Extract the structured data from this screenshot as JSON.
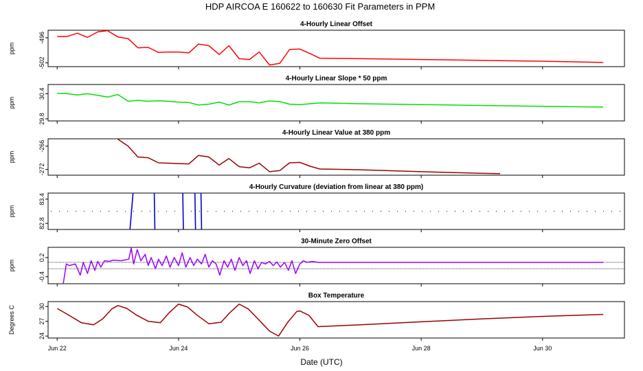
{
  "title": "HDP   AIRCOA E   160622 to 160630   Fit Parameters in PPM",
  "x_axis": {
    "label": "Date (UTC)",
    "range": [
      21.85,
      31.35
    ],
    "ticks": [
      {
        "value": 22,
        "label": "Jun 22"
      },
      {
        "value": 24,
        "label": "Jun 24"
      },
      {
        "value": 26,
        "label": "Jun 26"
      },
      {
        "value": 28,
        "label": "Jun 28"
      },
      {
        "value": 30,
        "label": "Jun 30"
      }
    ]
  },
  "colors": {
    "red": "#ff0000",
    "green": "#00e000",
    "darkred": "#990000",
    "blue": "#0000cc",
    "purple": "#9900ff"
  },
  "chart_data": [
    {
      "type": "line",
      "title": "4-Hourly Linear Offset",
      "ylabel": "ppm",
      "ylim": [
        -502.9,
        -494.2
      ],
      "yticks": [
        {
          "value": -496,
          "label": "-496"
        },
        {
          "value": -502,
          "label": "-502"
        }
      ],
      "color": "#ff0000",
      "x": [
        22.0,
        22.17,
        22.33,
        22.5,
        22.67,
        22.83,
        23.0,
        23.17,
        23.33,
        23.5,
        23.67,
        23.83,
        24.0,
        24.17,
        24.33,
        24.5,
        24.67,
        24.83,
        25.0,
        25.17,
        25.33,
        25.5,
        25.67,
        25.83,
        26.0,
        26.17,
        26.33,
        27.0,
        28.0,
        29.0,
        30.0,
        31.0
      ],
      "values": [
        -495.7,
        -495.7,
        -494.9,
        -495.9,
        -494.6,
        -494.3,
        -495.8,
        -496.2,
        -498.4,
        -498.3,
        -499.5,
        -499.4,
        -499.4,
        -499.6,
        -497.5,
        -497.9,
        -500.0,
        -497.9,
        -501.0,
        -501.2,
        -499.4,
        -502.5,
        -502.1,
        -498.8,
        -498.7,
        -499.8,
        -500.9,
        -501.0,
        -501.2,
        -501.4,
        -501.6,
        -501.9
      ]
    },
    {
      "type": "line",
      "title": "4-Hourly Linear Slope * 50 ppm",
      "ylabel": "ppm",
      "ylim": [
        29.75,
        30.62
      ],
      "yticks": [
        {
          "value": 30.4,
          "label": "30.4"
        },
        {
          "value": 29.8,
          "label": "29.8"
        }
      ],
      "color": "#00e000",
      "x": [
        22.0,
        22.17,
        22.33,
        22.5,
        22.67,
        22.83,
        23.0,
        23.17,
        23.33,
        23.5,
        23.67,
        23.83,
        24.0,
        24.17,
        24.33,
        24.5,
        24.67,
        24.83,
        25.0,
        25.17,
        25.33,
        25.5,
        25.67,
        25.83,
        26.0,
        26.17,
        26.33,
        27.0,
        28.0,
        29.0,
        30.0,
        31.0
      ],
      "values": [
        30.41,
        30.4,
        30.37,
        30.4,
        30.36,
        30.32,
        30.38,
        30.22,
        30.24,
        30.22,
        30.23,
        30.22,
        30.2,
        30.19,
        30.13,
        30.15,
        30.2,
        30.13,
        30.21,
        30.21,
        30.18,
        30.23,
        30.21,
        30.15,
        30.14,
        30.16,
        30.18,
        30.16,
        30.14,
        30.12,
        30.1,
        30.08
      ]
    },
    {
      "type": "line",
      "title": "4-Hourly Linear Value at 380 ppm",
      "ylabel": "ppm",
      "ylim": [
        -273.5,
        -264.1
      ],
      "yticks": [
        {
          "value": -266,
          "label": "-266"
        },
        {
          "value": -272,
          "label": "-272"
        }
      ],
      "color": "#990000",
      "x": [
        23.0,
        23.17,
        23.33,
        23.5,
        23.67,
        23.83,
        24.0,
        24.17,
        24.33,
        24.5,
        24.67,
        24.83,
        25.0,
        25.17,
        25.33,
        25.5,
        25.67,
        25.83,
        26.0,
        26.17,
        26.33,
        27.0,
        28.0,
        29.0,
        29.3
      ],
      "values": [
        -264.2,
        -266.0,
        -268.8,
        -269.0,
        -270.3,
        -270.4,
        -270.5,
        -270.6,
        -268.4,
        -268.8,
        -270.9,
        -269.2,
        -271.3,
        -271.6,
        -270.4,
        -272.6,
        -272.3,
        -270.3,
        -270.2,
        -271.2,
        -271.9,
        -272.1,
        -272.6,
        -273.0,
        -273.1
      ]
    },
    {
      "type": "line",
      "title": "4-Hourly Curvature (deviation from linear at 380 ppm)",
      "ylabel": "ppm",
      "ylim": [
        82.65,
        83.55
      ],
      "yticks": [
        {
          "value": 83.4,
          "label": "83.4"
        },
        {
          "value": 82.8,
          "label": "82.8"
        }
      ],
      "color": "#0000cc",
      "reference_level": 83.1,
      "x": [
        23.2,
        23.25,
        23.6,
        23.61,
        24.07,
        24.08,
        24.27,
        24.28,
        24.37,
        24.38
      ],
      "values": [
        82.65,
        83.55,
        83.55,
        82.65,
        83.55,
        82.65,
        83.55,
        82.65,
        83.55,
        82.65
      ]
    },
    {
      "type": "line",
      "title": "30-Minute Zero Offset",
      "ylabel": "ppm",
      "ylim": [
        -0.62,
        0.52
      ],
      "yticks": [
        {
          "value": 0.2,
          "label": "0.2"
        },
        {
          "value": -0.4,
          "label": "-0.4"
        }
      ],
      "color": "#9900ff",
      "reference_levels": [
        0.05,
        -0.15
      ],
      "x": [
        22.1,
        22.15,
        22.2,
        22.3,
        22.38,
        22.43,
        22.5,
        22.56,
        22.62,
        22.67,
        22.72,
        22.78,
        22.85,
        22.93,
        23.05,
        23.18,
        23.22,
        23.26,
        23.32,
        23.38,
        23.45,
        23.5,
        23.55,
        23.62,
        23.67,
        23.73,
        23.8,
        23.86,
        23.93,
        24.0,
        24.06,
        24.12,
        24.19,
        24.25,
        24.31,
        24.38,
        24.44,
        24.5,
        24.56,
        24.62,
        24.68,
        24.75,
        24.81,
        24.87,
        24.93,
        25.0,
        25.06,
        25.12,
        25.18,
        25.25,
        25.31,
        25.37,
        25.43,
        25.5,
        25.56,
        25.62,
        25.68,
        25.75,
        25.81,
        25.87,
        25.93,
        26.0,
        26.06,
        26.12,
        26.2,
        26.3,
        27.0,
        28.0,
        29.0,
        30.0,
        31.0
      ],
      "values": [
        -0.62,
        0.0,
        -0.05,
        0.0,
        -0.35,
        0.05,
        -0.3,
        0.1,
        -0.2,
        0.08,
        -0.1,
        0.1,
        0.08,
        0.12,
        0.1,
        0.15,
        0.5,
        0.0,
        0.45,
        0.1,
        0.3,
        -0.05,
        0.2,
        -0.15,
        0.15,
        -0.05,
        0.25,
        -0.1,
        0.2,
        -0.05,
        0.35,
        -0.1,
        0.2,
        -0.05,
        0.15,
        0.0,
        0.3,
        -0.1,
        0.1,
        0.0,
        -0.35,
        0.1,
        -0.1,
        0.15,
        -0.2,
        0.2,
        -0.05,
        0.1,
        -0.3,
        0.1,
        -0.15,
        0.05,
        0.0,
        0.08,
        -0.05,
        0.06,
        -0.1,
        0.05,
        -0.2,
        0.1,
        -0.3,
        0.0,
        0.1,
        0.05,
        0.08,
        0.05,
        0.05,
        0.05,
        0.05,
        0.05,
        0.05
      ]
    },
    {
      "type": "line",
      "title": "Box Temperature",
      "ylabel": "Degrees C",
      "ylim": [
        23.6,
        31.0
      ],
      "yticks": [
        {
          "value": 30,
          "label": "30"
        },
        {
          "value": 27,
          "label": "27"
        },
        {
          "value": 24,
          "label": "24"
        }
      ],
      "color": "#990000",
      "x": [
        22.0,
        22.2,
        22.4,
        22.6,
        22.75,
        22.9,
        23.0,
        23.15,
        23.3,
        23.5,
        23.7,
        23.85,
        24.0,
        24.15,
        24.3,
        24.5,
        24.7,
        24.85,
        25.0,
        25.15,
        25.3,
        25.5,
        25.65,
        25.8,
        25.95,
        26.0,
        26.15,
        26.3,
        27.0,
        28.0,
        29.0,
        30.0,
        31.0
      ],
      "values": [
        29.6,
        28.2,
        26.7,
        26.3,
        27.5,
        29.5,
        30.2,
        29.6,
        28.3,
        27.0,
        26.7,
        28.8,
        30.5,
        29.9,
        28.3,
        26.5,
        26.8,
        28.8,
        30.5,
        29.5,
        27.6,
        25.0,
        24.0,
        26.8,
        29.0,
        29.1,
        28.2,
        25.9,
        26.3,
        26.9,
        27.5,
        28.0,
        28.4
      ]
    }
  ]
}
